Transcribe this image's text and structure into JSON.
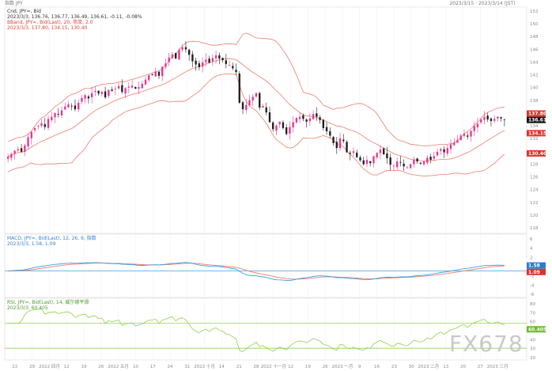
{
  "header": {
    "symbol": "指数 JPY",
    "timestamp": "2023/3/15 · 2023/3/14 (JST)"
  },
  "legends": {
    "ohlc_line1": "Cnd, JPY=, Bid",
    "ohlc_line2": "2023/3/3, 136.76, 136.77, 136.49, 136.61, -0.11, -0.08%",
    "bb_line1": "BBand, JPY=, Bid(Last), 20, 简单, 2.0",
    "bb_line2": "2023/3/3, 137.80, 134.15, 130.40",
    "macd_line1": "MACD, JPY=, Bid(Last), 12, 26, 9, 指数",
    "macd_line2": "2023/3/3, 1.58, 1.09",
    "rsi_line1": "RSI, JPY=, Bid(Last), 14, 威尔德平滑",
    "rsi_line2": "2023/3/3, 60.405"
  },
  "price_axis": {
    "ticks": [
      "152",
      "150",
      "148",
      "146",
      "144",
      "142",
      "140",
      "138",
      "136",
      "134",
      "132",
      "130",
      "128",
      "126",
      "124",
      "122",
      "120",
      "118"
    ]
  },
  "price_tags": {
    "bb_upper": "137.80",
    "close": "136.615",
    "bb_mid": "134.15",
    "bb_lower": "130.40"
  },
  "macd_axis": {
    "ticks": [
      "6",
      "4",
      "2",
      "0",
      "-2",
      "-4",
      "-6"
    ]
  },
  "macd_tags": {
    "macd": "1.58",
    "signal": "1.09"
  },
  "rsi_axis": {
    "ticks": [
      "80",
      "70",
      "60",
      "50",
      "40",
      "30",
      "20"
    ]
  },
  "rsi_tag": "60.405",
  "x_axis": {
    "labels": [
      "22",
      "29",
      "2022 四月",
      "12",
      "19",
      "26",
      "2022 五月",
      "10",
      "17",
      "24",
      "31",
      "2022 十月",
      "14",
      "21",
      "28",
      "2022 十一月",
      "12",
      "19",
      "26",
      "2023 一月",
      "9",
      "16",
      "23",
      "30",
      "2023 二月",
      "13",
      "20",
      "27",
      "2023 三月"
    ]
  },
  "watermark": "FX678",
  "colors": {
    "up": "#e8368f",
    "down": "#1e1e1e",
    "bb": "#f07c6c",
    "macd": "#3aa0e8",
    "signal": "#f07c6c",
    "rsi": "#8fd14f",
    "zero": "#3aa0e8",
    "rsi_level": "#8fd14f",
    "tag_upper": "#d9342b",
    "tag_close": "#111111",
    "tag_macd": "#2b7ad9",
    "tag_rsi": "#6ab82f"
  },
  "chart_data": {
    "type": "candlestick",
    "symbol": "JPY=",
    "price_ylim": [
      116,
      153
    ],
    "macd_ylim": [
      -7,
      7
    ],
    "rsi_ylim": [
      15,
      90
    ],
    "bb_period": 20,
    "bb_std": 2.0,
    "macd_params": [
      12,
      26,
      9
    ],
    "rsi_period": 14,
    "closes": [
      129.8,
      130.3,
      130.9,
      131.2,
      130.7,
      131.9,
      133.4,
      134.4,
      135.1,
      135.5,
      136.0,
      135.3,
      136.8,
      137.2,
      137.9,
      137.6,
      138.4,
      139.1,
      139.5,
      139.2,
      138.6,
      139.8,
      140.7,
      141.2,
      140.6,
      141.6,
      142.0,
      141.5,
      141.8,
      140.8,
      142.2,
      142.0,
      142.4,
      142.9,
      141.8,
      142.5,
      142.8,
      143.0,
      142.4,
      142.7,
      143.3,
      144.1,
      144.9,
      145.0,
      145.6,
      144.8,
      146.5,
      147.1,
      148.2,
      148.8,
      148.0,
      149.6,
      150.1,
      149.7,
      148.7,
      147.5,
      146.9,
      146.4,
      147.3,
      147.8,
      147.2,
      148.1,
      148.6,
      148.0,
      147.7,
      147.0,
      146.8,
      146.2,
      145.5,
      139.8,
      138.6,
      139.4,
      140.3,
      140.9,
      141.6,
      138.9,
      139.2,
      138.0,
      136.2,
      134.9,
      135.6,
      136.3,
      135.1,
      134.0,
      135.3,
      136.2,
      137.0,
      137.2,
      136.8,
      136.3,
      136.9,
      137.7,
      137.2,
      136.6,
      135.1,
      134.5,
      133.7,
      132.3,
      131.4,
      133.2,
      132.7,
      130.6,
      130.3,
      130.8,
      129.7,
      129.1,
      128.4,
      129.2,
      128.6,
      129.9,
      130.5,
      131.1,
      130.2,
      129.5,
      128.3,
      128.1,
      128.9,
      128.7,
      128.0,
      127.8,
      128.4,
      129.2,
      128.9,
      128.5,
      128.9,
      129.6,
      129.2,
      129.9,
      130.7,
      131.2,
      130.6,
      131.4,
      132.1,
      132.4,
      132.9,
      133.7,
      134.0,
      133.5,
      134.6,
      135.5,
      135.9,
      136.7,
      137.2,
      136.7,
      136.4,
      136.8,
      137.2,
      136.9,
      136.61
    ],
    "last_close": 136.61,
    "bb_last": {
      "upper": 137.8,
      "mid": 134.15,
      "lower": 130.4
    },
    "macd_last": {
      "macd": 1.58,
      "signal": 1.09
    },
    "rsi_last": 60.405,
    "rsi_levels": [
      70,
      30
    ]
  }
}
